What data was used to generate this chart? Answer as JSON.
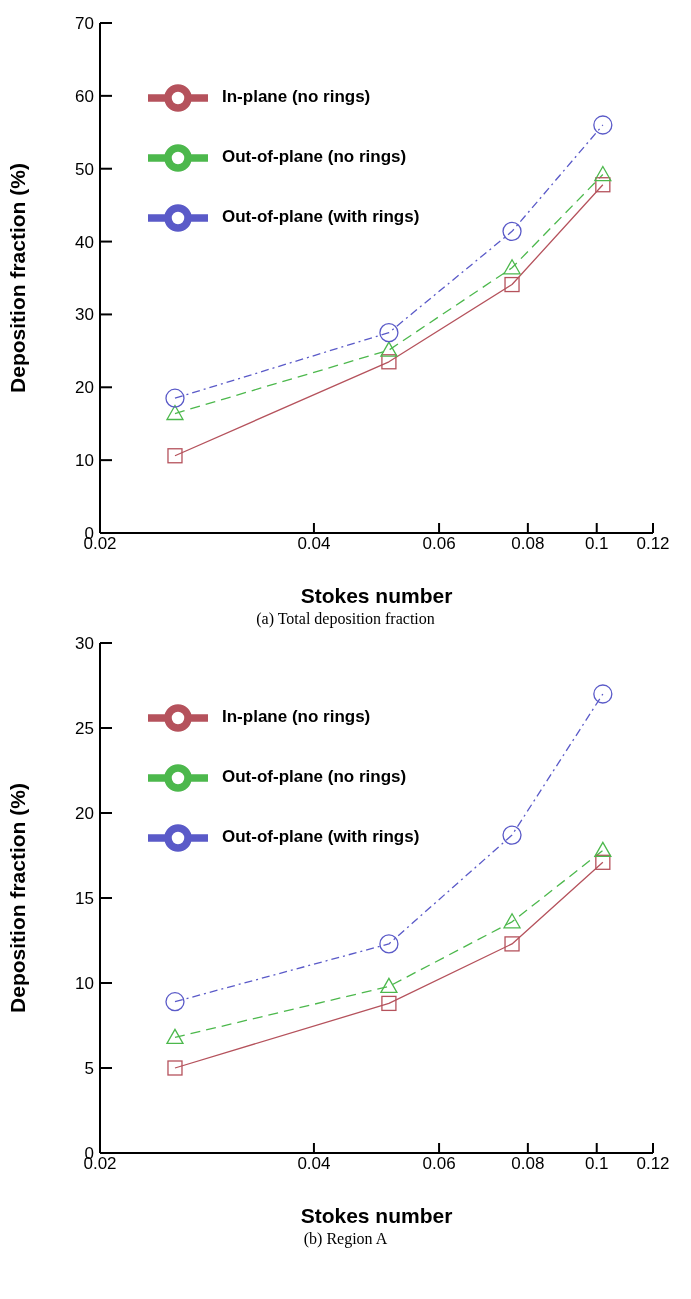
{
  "chart_data": [
    {
      "type": "line",
      "xlabel": "Stokes number",
      "ylabel": "Deposition fraction (%)",
      "annotations": [
        "(a) Total deposition fraction"
      ],
      "log": "x",
      "xlim": [
        0.02,
        0.12
      ],
      "xticks": [
        0.02,
        0.04,
        0.06,
        0.08,
        0.1,
        0.12
      ],
      "ylim": [
        0,
        70
      ],
      "yticks": [
        0,
        10,
        20,
        30,
        40,
        50,
        60,
        70
      ],
      "grid": false,
      "legend": "top left",
      "x": [
        0.0255,
        0.051,
        0.076,
        0.102
      ],
      "series": [
        {
          "name": "In-plane (no rings)",
          "color": "#b5525c",
          "marker": "square",
          "line_style": "solid",
          "values": [
            10.6,
            23.5,
            34.1,
            47.8
          ]
        },
        {
          "name": "Out-of-plane (no rings)",
          "color": "#4cb84c",
          "marker": "triangle",
          "line_style": "dashed",
          "values": [
            16.4,
            25.1,
            36.4,
            49.2
          ]
        },
        {
          "name": "Out-of-plane (with rings)",
          "color": "#5a5ac8",
          "marker": "circle",
          "line_style": "dotted",
          "values": [
            18.5,
            27.5,
            41.4,
            56.0
          ]
        }
      ]
    },
    {
      "type": "line",
      "xlabel": "Stokes number",
      "ylabel": "Deposition fraction (%)",
      "annotations": [
        "(b) Region A"
      ],
      "log": "x",
      "xlim": [
        0.02,
        0.12
      ],
      "xticks": [
        0.02,
        0.04,
        0.06,
        0.08,
        0.1,
        0.12
      ],
      "ylim": [
        0,
        30
      ],
      "yticks": [
        0,
        5,
        10,
        15,
        20,
        25,
        30
      ],
      "grid": false,
      "legend": "top left",
      "x": [
        0.0255,
        0.051,
        0.076,
        0.102
      ],
      "series": [
        {
          "name": "In-plane (no rings)",
          "color": "#b5525c",
          "marker": "square",
          "line_style": "solid",
          "values": [
            5.0,
            8.8,
            12.3,
            17.1
          ]
        },
        {
          "name": "Out-of-plane (no rings)",
          "color": "#4cb84c",
          "marker": "triangle",
          "line_style": "dashed",
          "values": [
            6.8,
            9.8,
            13.6,
            17.8
          ]
        },
        {
          "name": "Out-of-plane (with rings)",
          "color": "#5a5ac8",
          "marker": "circle",
          "line_style": "dotted",
          "values": [
            8.9,
            12.3,
            18.7,
            27.0
          ]
        }
      ]
    }
  ]
}
